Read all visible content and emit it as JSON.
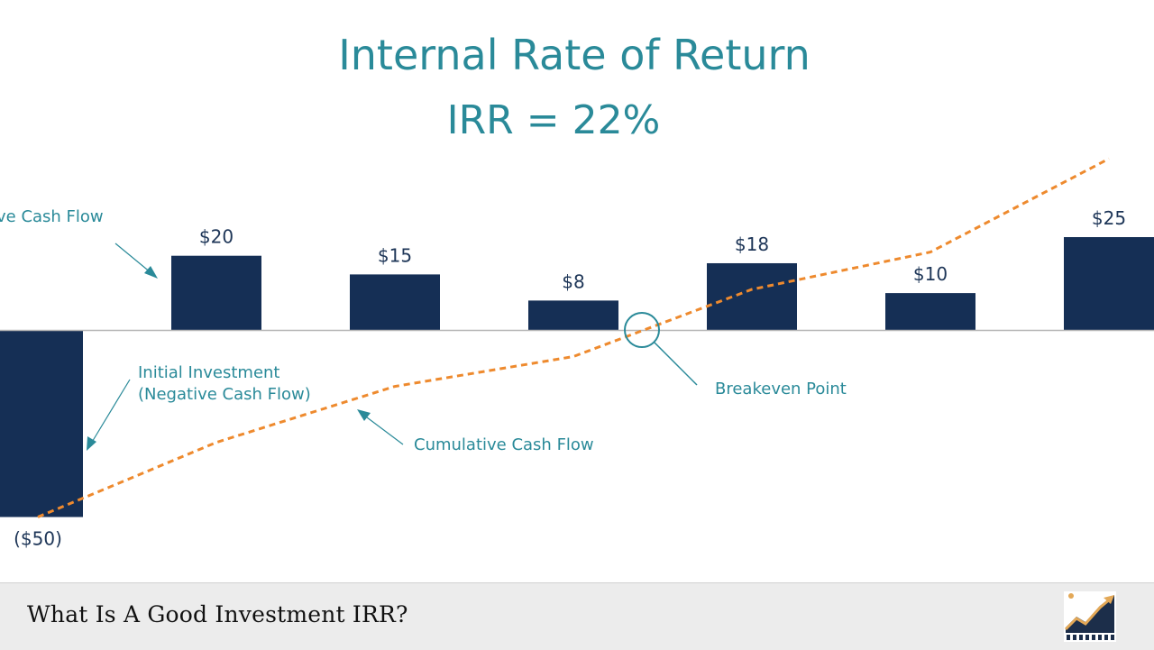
{
  "chart_data": {
    "type": "bar",
    "title": "Internal Rate of Return",
    "subtitle": "IRR = 22%",
    "categories": [
      "",
      "",
      "",
      "",
      "",
      "",
      ""
    ],
    "values": [
      -50,
      20,
      15,
      8,
      18,
      10,
      25
    ],
    "value_labels": [
      "($50)",
      "$20",
      "$15",
      "$8",
      "$18",
      "$10",
      "$25"
    ],
    "cumulative": [
      -50,
      -30,
      -15,
      -7,
      11,
      21,
      46
    ],
    "annotations": {
      "positive": "ve Cash Flow",
      "initial_line1": "Initial Investment",
      "initial_line2": "(Negative Cash Flow)",
      "cumulative": "Cumulative Cash Flow",
      "breakeven": "Breakeven Point"
    },
    "colors": {
      "bar": "#152f55",
      "line": "#ee8a2e",
      "accent": "#2a8a99",
      "label": "#1d3557"
    }
  },
  "footer": {
    "title": "What Is A Good Investment IRR?"
  },
  "logo": {
    "icon": "chart-growth-icon"
  }
}
